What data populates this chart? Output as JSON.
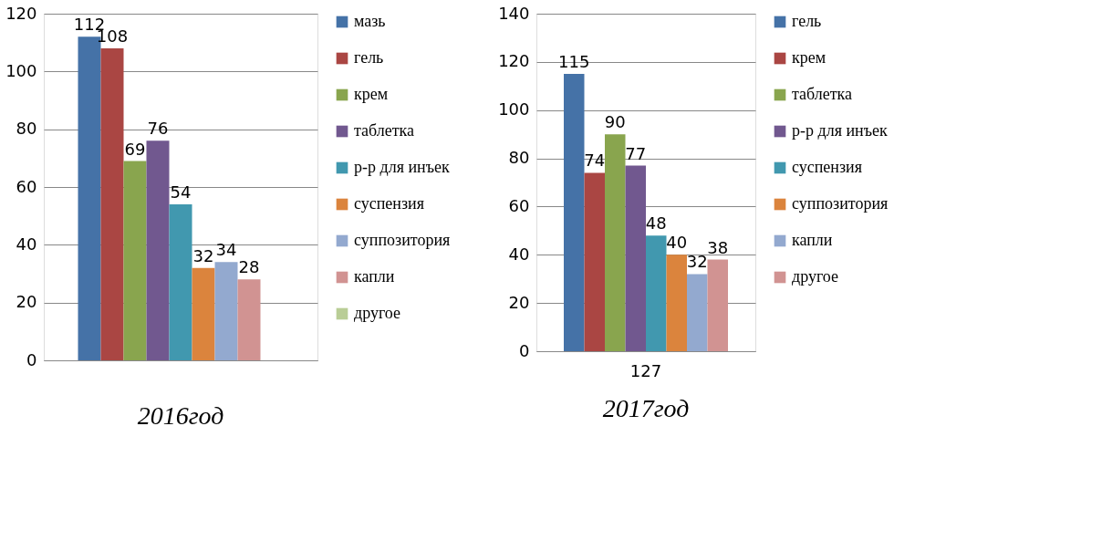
{
  "chart_data": [
    {
      "type": "bar",
      "title": "2016год",
      "categories": [
        null
      ],
      "ylim": [
        0,
        120
      ],
      "yticks": [
        0,
        20,
        40,
        60,
        80,
        100,
        120
      ],
      "grid": "y",
      "legend": "right",
      "data_labels": true,
      "series": [
        {
          "name": "мазь",
          "color": "#4572a7",
          "values": [
            112
          ]
        },
        {
          "name": "гель",
          "color": "#aa4643",
          "values": [
            108
          ]
        },
        {
          "name": "крем",
          "color": "#89a54e",
          "values": [
            69
          ]
        },
        {
          "name": "таблетка",
          "color": "#71588f",
          "values": [
            76
          ]
        },
        {
          "name": "р-р для инъек",
          "color": "#4198af",
          "values": [
            54
          ]
        },
        {
          "name": "суспензия",
          "color": "#db843d",
          "values": [
            32
          ]
        },
        {
          "name": "суппозитория",
          "color": "#93a9cf",
          "values": [
            34
          ]
        },
        {
          "name": "капли",
          "color": "#d19392",
          "values": [
            28
          ]
        },
        {
          "name": "другое",
          "color": "#b9cd96",
          "values": [
            null
          ]
        }
      ]
    },
    {
      "type": "bar",
      "title": "2017год",
      "categories": [
        null
      ],
      "annotations": [
        "127"
      ],
      "ylim": [
        0,
        140
      ],
      "yticks": [
        0,
        20,
        40,
        60,
        80,
        100,
        120,
        140
      ],
      "grid": "y",
      "legend": "right",
      "data_labels": true,
      "series": [
        {
          "name": "гель",
          "color": "#4572a7",
          "values": [
            115
          ]
        },
        {
          "name": "крем",
          "color": "#aa4643",
          "values": [
            74
          ]
        },
        {
          "name": "таблетка",
          "color": "#89a54e",
          "values": [
            90
          ]
        },
        {
          "name": "р-р для инъек",
          "color": "#71588f",
          "values": [
            77
          ]
        },
        {
          "name": "суспензия",
          "color": "#4198af",
          "values": [
            48
          ]
        },
        {
          "name": "суппозитория",
          "color": "#db843d",
          "values": [
            40
          ]
        },
        {
          "name": "капли",
          "color": "#93a9cf",
          "values": [
            32
          ]
        },
        {
          "name": "другое",
          "color": "#d19392",
          "values": [
            38
          ]
        }
      ]
    }
  ]
}
